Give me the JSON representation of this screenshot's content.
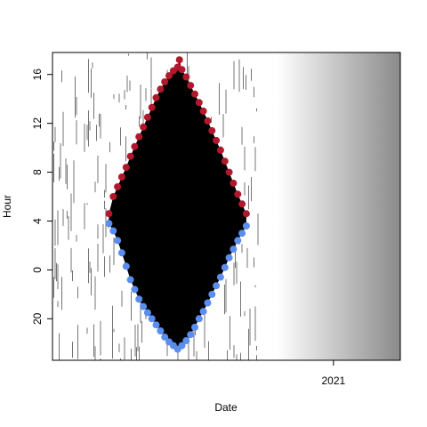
{
  "chart_data": {
    "type": "scatter",
    "title": "",
    "xlabel": "Date",
    "ylabel": "Hour",
    "x_ticks": [
      "2021"
    ],
    "y_ticks": [
      "16",
      "12",
      "8",
      "4",
      "0",
      "20"
    ],
    "y_axis_note": "hours wrap past midnight: bottom label 20 = 20:00 of the previous day",
    "background": "black raster of activity; gradient from white to gray after the data ends",
    "series": [
      {
        "name": "",
        "color": "#b2182b",
        "description": "upper boundary (latest hour)",
        "points": [
          [
            "2020-01-01",
            4.6
          ],
          [
            "2020-01-08",
            6.0
          ],
          [
            "2020-01-15",
            6.8
          ],
          [
            "2020-01-22",
            7.6
          ],
          [
            "2020-01-29",
            8.4
          ],
          [
            "2020-02-05",
            9.3
          ],
          [
            "2020-02-12",
            10.1
          ],
          [
            "2020-02-19",
            10.9
          ],
          [
            "2020-02-26",
            11.7
          ],
          [
            "2020-03-04",
            12.5
          ],
          [
            "2020-03-11",
            13.3
          ],
          [
            "2020-03-18",
            14.1
          ],
          [
            "2020-03-25",
            14.8
          ],
          [
            "2020-04-01",
            15.4
          ],
          [
            "2020-04-08",
            15.9
          ],
          [
            "2020-04-15",
            16.3
          ],
          [
            "2020-04-22",
            16.6
          ],
          [
            "2020-04-25",
            17.2
          ],
          [
            "2020-04-29",
            16.4
          ],
          [
            "2020-05-06",
            15.8
          ],
          [
            "2020-05-13",
            15.1
          ],
          [
            "2020-05-20",
            14.4
          ],
          [
            "2020-05-27",
            13.7
          ],
          [
            "2020-06-03",
            13.0
          ],
          [
            "2020-06-10",
            12.2
          ],
          [
            "2020-06-17",
            11.4
          ],
          [
            "2020-06-24",
            10.6
          ],
          [
            "2020-07-01",
            9.8
          ],
          [
            "2020-07-08",
            8.9
          ],
          [
            "2020-07-15",
            8.0
          ],
          [
            "2020-07-22",
            7.1
          ],
          [
            "2020-07-29",
            6.2
          ],
          [
            "2020-08-05",
            5.4
          ],
          [
            "2020-08-12",
            4.6
          ]
        ]
      },
      {
        "name": "",
        "color": "#5b8def",
        "description": "lower boundary (earliest hour)",
        "points": [
          [
            "2020-01-01",
            3.8
          ],
          [
            "2020-01-08",
            3.2
          ],
          [
            "2020-01-15",
            2.4
          ],
          [
            "2020-01-22",
            1.4
          ],
          [
            "2020-01-29",
            0.3
          ],
          [
            "2020-02-05",
            -0.8
          ],
          [
            "2020-02-12",
            -1.6
          ],
          [
            "2020-02-19",
            -2.4
          ],
          [
            "2020-02-26",
            -3.0
          ],
          [
            "2020-03-04",
            -3.5
          ],
          [
            "2020-03-11",
            -4.0
          ],
          [
            "2020-03-18",
            -4.5
          ],
          [
            "2020-03-25",
            -5.0
          ],
          [
            "2020-04-01",
            -5.5
          ],
          [
            "2020-04-08",
            -5.9
          ],
          [
            "2020-04-15",
            -6.2
          ],
          [
            "2020-04-22",
            -6.5
          ],
          [
            "2020-04-29",
            -6.2
          ],
          [
            "2020-05-06",
            -5.8
          ],
          [
            "2020-05-13",
            -5.3
          ],
          [
            "2020-05-20",
            -4.7
          ],
          [
            "2020-05-27",
            -4.0
          ],
          [
            "2020-06-03",
            -3.4
          ],
          [
            "2020-06-10",
            -2.7
          ],
          [
            "2020-06-17",
            -2.0
          ],
          [
            "2020-06-24",
            -1.3
          ],
          [
            "2020-07-01",
            -0.6
          ],
          [
            "2020-07-08",
            0.2
          ],
          [
            "2020-07-15",
            1.0
          ],
          [
            "2020-07-22",
            1.7
          ],
          [
            "2020-07-29",
            2.4
          ],
          [
            "2020-08-05",
            3.0
          ],
          [
            "2020-08-12",
            3.6
          ]
        ]
      }
    ],
    "xlim": [
      "2019-10-01",
      "2021-04-20"
    ],
    "ylim": [
      -7.4,
      17.8
    ],
    "data_end": "2020-08-15",
    "gradient_start": "2020-10-01",
    "grid": false,
    "legend": "none"
  }
}
